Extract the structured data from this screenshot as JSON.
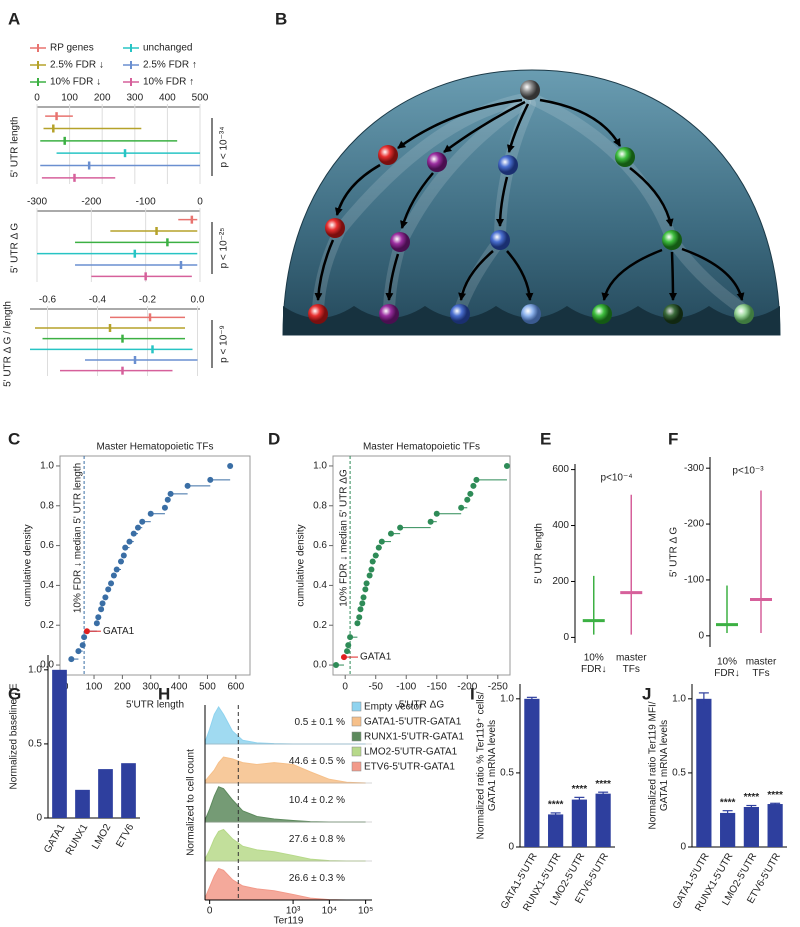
{
  "illustration": {
    "panel": "B"
  },
  "chart_data": [
    {
      "panel": "A",
      "type": "range",
      "orientation": "horizontal",
      "xlim": [
        0,
        500
      ],
      "xticks": [
        0,
        100,
        200,
        300,
        400,
        500
      ],
      "ylabel": "5' UTR length",
      "pvalue": "p < 10⁻³⁴",
      "series": [
        {
          "name": "RP genes",
          "color": "#e8736f",
          "values": [
            25,
            60,
            110
          ]
        },
        {
          "name": "2.5% FDR ↓",
          "color": "#b5a22a",
          "values": [
            20,
            50,
            320
          ]
        },
        {
          "name": "10% FDR ↓",
          "color": "#3cb043",
          "values": [
            10,
            85,
            430
          ]
        },
        {
          "name": "unchanged",
          "color": "#27c4c4",
          "values": [
            60,
            270,
            500
          ]
        },
        {
          "name": "2.5% FDR ↑",
          "color": "#6a8fd0",
          "values": [
            10,
            160,
            500
          ]
        },
        {
          "name": "10% FDR ↑",
          "color": "#d6609b",
          "values": [
            15,
            115,
            240
          ]
        }
      ]
    },
    {
      "type": "range",
      "orientation": "horizontal",
      "xlim": [
        -300,
        0
      ],
      "xticks": [
        -300,
        -200,
        -100,
        0
      ],
      "ylabel": "5' UTR Δ G",
      "pvalue": "p < 10⁻²⁵",
      "series": [
        {
          "color": "#e8736f",
          "values": [
            -40,
            -15,
            -5
          ]
        },
        {
          "color": "#b5a22a",
          "values": [
            -165,
            -80,
            -5
          ]
        },
        {
          "color": "#3cb043",
          "values": [
            -230,
            -60,
            -2
          ]
        },
        {
          "color": "#27c4c4",
          "values": [
            -300,
            -120,
            -5
          ]
        },
        {
          "color": "#6a8fd0",
          "values": [
            -230,
            -35,
            -5
          ]
        },
        {
          "color": "#d6609b",
          "values": [
            -200,
            -100,
            -15
          ]
        }
      ]
    },
    {
      "type": "range",
      "orientation": "horizontal",
      "xlim": [
        -0.67,
        0.01
      ],
      "xticks": [
        -0.6,
        -0.4,
        -0.2,
        {
          "value": 0,
          "label": "0.0"
        }
      ],
      "ylabel": "5' UTR Δ G / length",
      "pvalue": "p < 10⁻⁹",
      "series": [
        {
          "color": "#e8736f",
          "values": [
            -0.35,
            -0.19,
            -0.05
          ]
        },
        {
          "color": "#b5a22a",
          "values": [
            -0.65,
            -0.35,
            -0.05
          ]
        },
        {
          "color": "#3cb043",
          "values": [
            -0.62,
            -0.3,
            -0.05
          ]
        },
        {
          "color": "#27c4c4",
          "values": [
            -0.67,
            -0.18,
            -0.02
          ]
        },
        {
          "color": "#6a8fd0",
          "values": [
            -0.45,
            -0.25,
            0
          ]
        },
        {
          "color": "#d6609b",
          "values": [
            -0.55,
            -0.3,
            -0.1
          ]
        }
      ]
    },
    {
      "panel": "C",
      "type": "scatter",
      "title": "Master Hematopoietic TFs",
      "xlabel": "5'UTR length",
      "ylabel": "cumulative density",
      "color": "#3a6ea5",
      "x": [
        20,
        45,
        60,
        65,
        75,
        110,
        115,
        125,
        130,
        140,
        150,
        160,
        170,
        180,
        195,
        205,
        210,
        225,
        240,
        255,
        270,
        300,
        350,
        360,
        370,
        430,
        510,
        580
      ],
      "y": [
        0.03,
        0.07,
        0.1,
        0.14,
        0.17,
        0.21,
        0.24,
        0.28,
        0.31,
        0.34,
        0.38,
        0.41,
        0.45,
        0.48,
        0.52,
        0.55,
        0.59,
        0.62,
        0.66,
        0.69,
        0.72,
        0.76,
        0.79,
        0.83,
        0.86,
        0.9,
        0.93,
        1.0
      ],
      "xlim": [
        -20,
        650
      ],
      "xticks": [
        0,
        100,
        200,
        300,
        400,
        500,
        600
      ],
      "ylim": [
        -0.05,
        1.05
      ],
      "yticks": [
        {
          "value": 0,
          "label": "0.0"
        },
        0.2,
        0.4,
        0.6,
        0.8,
        {
          "value": 1,
          "label": "1.0"
        }
      ],
      "vline": 65,
      "vline_label": "10% FDR ↓ median 5' UTR length",
      "annotation": {
        "text": "GATA1",
        "x": 75,
        "y": 0.17,
        "color": "#e02020"
      }
    },
    {
      "panel": "D",
      "type": "scatter",
      "title": "Master Hematopoietic TFs",
      "xlabel": "5'UTR ΔG",
      "ylabel": "cumulative density",
      "color": "#2e8b57",
      "x": [
        15,
        2,
        -3,
        -5,
        -8,
        -20,
        -23,
        -25,
        -28,
        -30,
        -33,
        -35,
        -40,
        -43,
        -45,
        -50,
        -55,
        -60,
        -75,
        -90,
        -140,
        -150,
        -190,
        -200,
        -205,
        -210,
        -215,
        -265
      ],
      "y": [
        0.0,
        0.04,
        0.07,
        0.1,
        0.14,
        0.21,
        0.24,
        0.28,
        0.31,
        0.34,
        0.38,
        0.41,
        0.45,
        0.48,
        0.52,
        0.55,
        0.59,
        0.62,
        0.66,
        0.69,
        0.72,
        0.76,
        0.79,
        0.83,
        0.86,
        0.9,
        0.93,
        1.0
      ],
      "xlim": [
        20,
        -270
      ],
      "xticks": [
        0,
        -50,
        -100,
        -150,
        -200,
        -250
      ],
      "ylim": [
        -0.05,
        1.05
      ],
      "yticks": [
        {
          "value": 0,
          "label": "0.0"
        },
        0.2,
        0.4,
        0.6,
        0.8,
        {
          "value": 1,
          "label": "1.0"
        }
      ],
      "vline": -8,
      "vline_label": "10% FDR ↓ median 5' UTR ΔG",
      "annotation": {
        "text": "GATA1",
        "x": 2,
        "y": 0.04,
        "color": "#e02020"
      }
    },
    {
      "panel": "E",
      "type": "range",
      "orientation": "vertical",
      "categories": [
        "10%\nFDR↓",
        "master\nTFs"
      ],
      "colors": [
        "#3cb043",
        "#d6609b"
      ],
      "values": [
        [
          10,
          60,
          220
        ],
        [
          10,
          160,
          510
        ]
      ],
      "ylim": [
        -20,
        620
      ],
      "yticks": [
        0,
        200,
        400,
        600
      ],
      "ylabel": "5' UTR length",
      "pvalue": "p<10⁻⁴"
    },
    {
      "panel": "F",
      "type": "range",
      "orientation": "vertical",
      "categories": [
        "10%\nFDR↓",
        "master\nTFs"
      ],
      "colors": [
        "#3cb043",
        "#d6609b"
      ],
      "values": [
        [
          -5,
          -20,
          -90
        ],
        [
          -5,
          -65,
          -260
        ]
      ],
      "ylim": [
        20,
        -320
      ],
      "yticks": [
        0,
        -100,
        -200,
        -300
      ],
      "ylabel": "5' UTR Δ G",
      "pvalue": "p<10⁻³"
    },
    {
      "panel": "G",
      "type": "bar",
      "categories": [
        "GATA1",
        "RUNX1",
        "LMO2",
        "ETV6"
      ],
      "values": [
        1.0,
        0.19,
        0.33,
        0.37
      ],
      "color": "#2e3f9e",
      "ylim": [
        0,
        1.1
      ],
      "yticks": [
        0,
        0.5,
        {
          "value": 1,
          "label": "1.0"
        }
      ],
      "ylabel": "Normalized baseline TE"
    },
    {
      "panel": "H",
      "type": "ridgeline",
      "xlabel": "Ter119",
      "ylabel": "Normalized to cell count",
      "x": [
        -3,
        0,
        3,
        6,
        10,
        20,
        40,
        100,
        300,
        1000,
        3000,
        10000,
        30000,
        100000
      ],
      "xlim": [
        -3,
        150000
      ],
      "xticks": [
        0,
        {
          "value": 1000,
          "label": "10³"
        },
        {
          "value": 10000,
          "label": "10⁴"
        },
        {
          "value": 100000,
          "label": "10⁵"
        }
      ],
      "vline": 30,
      "series": [
        {
          "name": "Empty vector",
          "color": "#8fd3ef",
          "annotation": "0.5 ± 0.1 %",
          "values": [
            0.05,
            0.4,
            0.8,
            1.0,
            0.8,
            0.35,
            0.1,
            0.03,
            0.01,
            0,
            0,
            0,
            0,
            0
          ]
        },
        {
          "name": "GATA1-5'UTR-GATA1",
          "color": "#f6c08a",
          "annotation": "44.6 ± 0.5 %",
          "values": [
            0.05,
            0.2,
            0.35,
            0.55,
            0.7,
            0.65,
            0.55,
            0.5,
            0.55,
            0.5,
            0.3,
            0.1,
            0.02,
            0
          ]
        },
        {
          "name": "RUNX1-5'UTR-GATA1",
          "color": "#5d8a5d",
          "annotation": "10.4 ± 0.2 %",
          "values": [
            0.05,
            0.35,
            0.7,
            0.95,
            0.9,
            0.6,
            0.3,
            0.15,
            0.08,
            0.04,
            0.01,
            0,
            0,
            0
          ]
        },
        {
          "name": "LMO2-5'UTR-GATA1",
          "color": "#b7d98a",
          "annotation": "27.6 ± 0.8 %",
          "values": [
            0.05,
            0.3,
            0.6,
            0.8,
            0.85,
            0.6,
            0.4,
            0.3,
            0.25,
            0.15,
            0.05,
            0.01,
            0,
            0
          ]
        },
        {
          "name": "ETV6-5'UTR-GATA1",
          "color": "#f29a8a",
          "annotation": "26.6 ± 0.3 %",
          "values": [
            0.05,
            0.35,
            0.65,
            0.85,
            0.8,
            0.55,
            0.38,
            0.3,
            0.25,
            0.15,
            0.05,
            0.01,
            0,
            0
          ]
        }
      ]
    },
    {
      "panel": "I",
      "type": "bar",
      "categories": [
        "GATA1-5'UTR",
        "RUNX1-5'UTR",
        "LMO2-5'UTR",
        "ETV6-5'UTR"
      ],
      "values": [
        1.0,
        0.22,
        0.32,
        0.36
      ],
      "errors": [
        0.01,
        0.01,
        0.015,
        0.01
      ],
      "annotations": [
        null,
        "****",
        "****",
        "****"
      ],
      "color": "#2e3f9e",
      "ylim": [
        0,
        1.1
      ],
      "yticks": [
        0,
        0.5,
        {
          "value": 1,
          "label": "1.0"
        }
      ],
      "ylabel": "Normalized ratio % Ter119⁺ cells/\nGATA1 mRNA levels"
    },
    {
      "panel": "J",
      "type": "bar",
      "categories": [
        "GATA1-5'UTR",
        "RUNX1-5'UTR",
        "LMO2-5'UTR",
        "ETV6-5'UTR"
      ],
      "values": [
        1.0,
        0.23,
        0.27,
        0.29
      ],
      "errors": [
        0.04,
        0.015,
        0.01,
        0.005
      ],
      "annotations": [
        null,
        "****",
        "****",
        "****"
      ],
      "color": "#2e3f9e",
      "ylim": [
        0,
        1.1
      ],
      "yticks": [
        0,
        0.5,
        {
          "value": 1,
          "label": "1.0"
        }
      ],
      "ylabel": "Normalized ratio Ter119 MFI/\nGATA1 mRNA levels"
    }
  ]
}
